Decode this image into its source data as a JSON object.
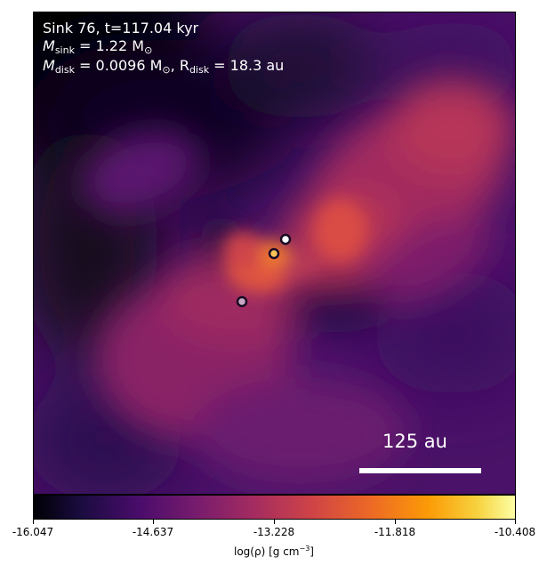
{
  "panel": {
    "line1": "Sink 76, t=117.04 kyr",
    "msink_symbol": "M",
    "msink_sub": "sink",
    "msink_value": "= 1.22 M",
    "msink_unit_sub": "⊙",
    "mdisk_symbol": "M",
    "mdisk_sub": "disk",
    "mdisk_value": "= 0.0096 M",
    "mdisk_unit_sub": "⊙",
    "rdisk_symbol": ", R",
    "rdisk_sub": "disk",
    "rdisk_value": "= 18.3 au"
  },
  "scale_bar": {
    "label": "125 au"
  },
  "colorbar": {
    "colormap": "inferno",
    "ticks": [
      "-16.047",
      "-14.637",
      "-13.228",
      "-11.818",
      "-10.408"
    ],
    "label_prefix": "log(ρ) [g cm",
    "label_sup": "−3",
    "label_suffix": "]"
  },
  "sinks": [
    {
      "name": "sink-upper",
      "fill": "#ffffff"
    },
    {
      "name": "sink-central",
      "fill": "#f9c35a"
    },
    {
      "name": "sink-lower",
      "fill": "#c8a9c3"
    }
  ]
}
